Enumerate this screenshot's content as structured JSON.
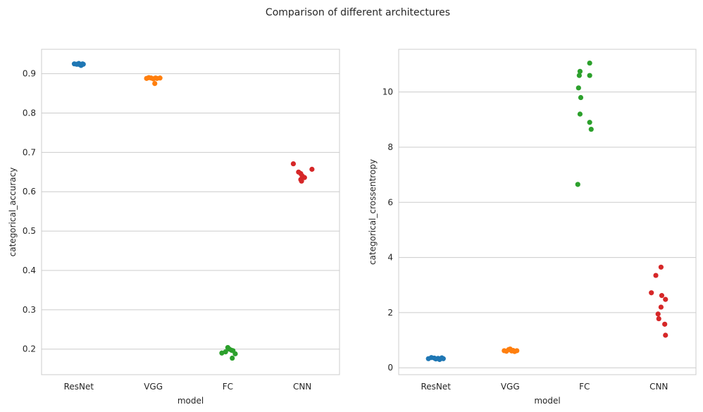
{
  "figure_title": "Comparison of different architectures",
  "chart_data": [
    {
      "type": "scatter",
      "subtype": "strip",
      "xlabel": "model",
      "ylabel": "categorical_accuracy",
      "categories": [
        "ResNet",
        "VGG",
        "FC",
        "CNN"
      ],
      "ylim": [
        0.135,
        0.962
      ],
      "yticks": [
        0.2,
        0.3,
        0.4,
        0.5,
        0.6,
        0.7,
        0.8,
        0.9
      ],
      "ytick_labels": [
        "0.2",
        "0.3",
        "0.4",
        "0.5",
        "0.6",
        "0.7",
        "0.8",
        "0.9"
      ],
      "grid": "horizontal",
      "colors": [
        "#1f77b4",
        "#ff7f0e",
        "#2ca02c",
        "#d62728"
      ],
      "points": [
        {
          "category": "ResNet",
          "jitter": -0.06,
          "value": 0.925
        },
        {
          "category": "ResNet",
          "jitter": -0.03,
          "value": 0.924
        },
        {
          "category": "ResNet",
          "jitter": 0.0,
          "value": 0.926
        },
        {
          "category": "ResNet",
          "jitter": 0.02,
          "value": 0.923
        },
        {
          "category": "ResNet",
          "jitter": 0.05,
          "value": 0.925
        },
        {
          "category": "ResNet",
          "jitter": 0.03,
          "value": 0.921
        },
        {
          "category": "ResNet",
          "jitter": -0.01,
          "value": 0.924
        },
        {
          "category": "ResNet",
          "jitter": 0.06,
          "value": 0.924
        },
        {
          "category": "VGG",
          "jitter": -0.09,
          "value": 0.888
        },
        {
          "category": "VGG",
          "jitter": -0.06,
          "value": 0.89
        },
        {
          "category": "VGG",
          "jitter": -0.03,
          "value": 0.889
        },
        {
          "category": "VGG",
          "jitter": 0.0,
          "value": 0.887
        },
        {
          "category": "VGG",
          "jitter": 0.03,
          "value": 0.889
        },
        {
          "category": "VGG",
          "jitter": 0.05,
          "value": 0.888
        },
        {
          "category": "VGG",
          "jitter": 0.09,
          "value": 0.889
        },
        {
          "category": "VGG",
          "jitter": 0.02,
          "value": 0.875
        },
        {
          "category": "FC",
          "jitter": -0.08,
          "value": 0.19
        },
        {
          "category": "FC",
          "jitter": -0.03,
          "value": 0.193
        },
        {
          "category": "FC",
          "jitter": 0.0,
          "value": 0.204
        },
        {
          "category": "FC",
          "jitter": 0.02,
          "value": 0.2
        },
        {
          "category": "FC",
          "jitter": 0.05,
          "value": 0.197
        },
        {
          "category": "FC",
          "jitter": 0.07,
          "value": 0.196
        },
        {
          "category": "FC",
          "jitter": 0.1,
          "value": 0.188
        },
        {
          "category": "FC",
          "jitter": 0.06,
          "value": 0.177
        },
        {
          "category": "CNN",
          "jitter": -0.12,
          "value": 0.671
        },
        {
          "category": "CNN",
          "jitter": -0.05,
          "value": 0.65
        },
        {
          "category": "CNN",
          "jitter": -0.02,
          "value": 0.646
        },
        {
          "category": "CNN",
          "jitter": 0.0,
          "value": 0.64
        },
        {
          "category": "CNN",
          "jitter": 0.03,
          "value": 0.636
        },
        {
          "category": "CNN",
          "jitter": -0.02,
          "value": 0.631
        },
        {
          "category": "CNN",
          "jitter": -0.01,
          "value": 0.627
        },
        {
          "category": "CNN",
          "jitter": 0.13,
          "value": 0.657
        }
      ]
    },
    {
      "type": "scatter",
      "subtype": "strip",
      "xlabel": "model",
      "ylabel": "categorical_crossentropy",
      "categories": [
        "ResNet",
        "VGG",
        "FC",
        "CNN"
      ],
      "ylim": [
        -0.25,
        11.55
      ],
      "yticks": [
        0,
        2,
        4,
        6,
        8,
        10
      ],
      "ytick_labels": [
        "0",
        "2",
        "4",
        "6",
        "8",
        "10"
      ],
      "grid": "horizontal",
      "colors": [
        "#1f77b4",
        "#ff7f0e",
        "#2ca02c",
        "#d62728"
      ],
      "points": [
        {
          "category": "ResNet",
          "jitter": -0.1,
          "value": 0.33
        },
        {
          "category": "ResNet",
          "jitter": -0.06,
          "value": 0.37
        },
        {
          "category": "ResNet",
          "jitter": -0.02,
          "value": 0.35
        },
        {
          "category": "ResNet",
          "jitter": 0.0,
          "value": 0.32
        },
        {
          "category": "ResNet",
          "jitter": 0.03,
          "value": 0.34
        },
        {
          "category": "ResNet",
          "jitter": 0.05,
          "value": 0.3
        },
        {
          "category": "ResNet",
          "jitter": 0.08,
          "value": 0.36
        },
        {
          "category": "ResNet",
          "jitter": 0.1,
          "value": 0.33
        },
        {
          "category": "VGG",
          "jitter": -0.08,
          "value": 0.62
        },
        {
          "category": "VGG",
          "jitter": -0.05,
          "value": 0.6
        },
        {
          "category": "VGG",
          "jitter": -0.02,
          "value": 0.66
        },
        {
          "category": "VGG",
          "jitter": 0.0,
          "value": 0.68
        },
        {
          "category": "VGG",
          "jitter": 0.02,
          "value": 0.61
        },
        {
          "category": "VGG",
          "jitter": 0.04,
          "value": 0.63
        },
        {
          "category": "VGG",
          "jitter": 0.06,
          "value": 0.59
        },
        {
          "category": "VGG",
          "jitter": 0.09,
          "value": 0.62
        },
        {
          "category": "FC",
          "jitter": -0.08,
          "value": 10.15
        },
        {
          "category": "FC",
          "jitter": -0.06,
          "value": 10.75
        },
        {
          "category": "FC",
          "jitter": -0.07,
          "value": 10.6
        },
        {
          "category": "FC",
          "jitter": -0.05,
          "value": 9.8
        },
        {
          "category": "FC",
          "jitter": -0.06,
          "value": 9.2
        },
        {
          "category": "FC",
          "jitter": 0.07,
          "value": 11.05
        },
        {
          "category": "FC",
          "jitter": 0.07,
          "value": 10.6
        },
        {
          "category": "FC",
          "jitter": 0.07,
          "value": 8.9
        },
        {
          "category": "FC",
          "jitter": 0.09,
          "value": 8.65
        },
        {
          "category": "FC",
          "jitter": -0.09,
          "value": 6.65
        },
        {
          "category": "CNN",
          "jitter": 0.03,
          "value": 3.65
        },
        {
          "category": "CNN",
          "jitter": -0.04,
          "value": 3.35
        },
        {
          "category": "CNN",
          "jitter": -0.1,
          "value": 2.72
        },
        {
          "category": "CNN",
          "jitter": 0.04,
          "value": 2.62
        },
        {
          "category": "CNN",
          "jitter": 0.09,
          "value": 2.48
        },
        {
          "category": "CNN",
          "jitter": 0.03,
          "value": 2.2
        },
        {
          "category": "CNN",
          "jitter": -0.01,
          "value": 1.95
        },
        {
          "category": "CNN",
          "jitter": 0.0,
          "value": 1.78
        },
        {
          "category": "CNN",
          "jitter": 0.08,
          "value": 1.58
        },
        {
          "category": "CNN",
          "jitter": 0.09,
          "value": 1.18
        }
      ]
    }
  ]
}
